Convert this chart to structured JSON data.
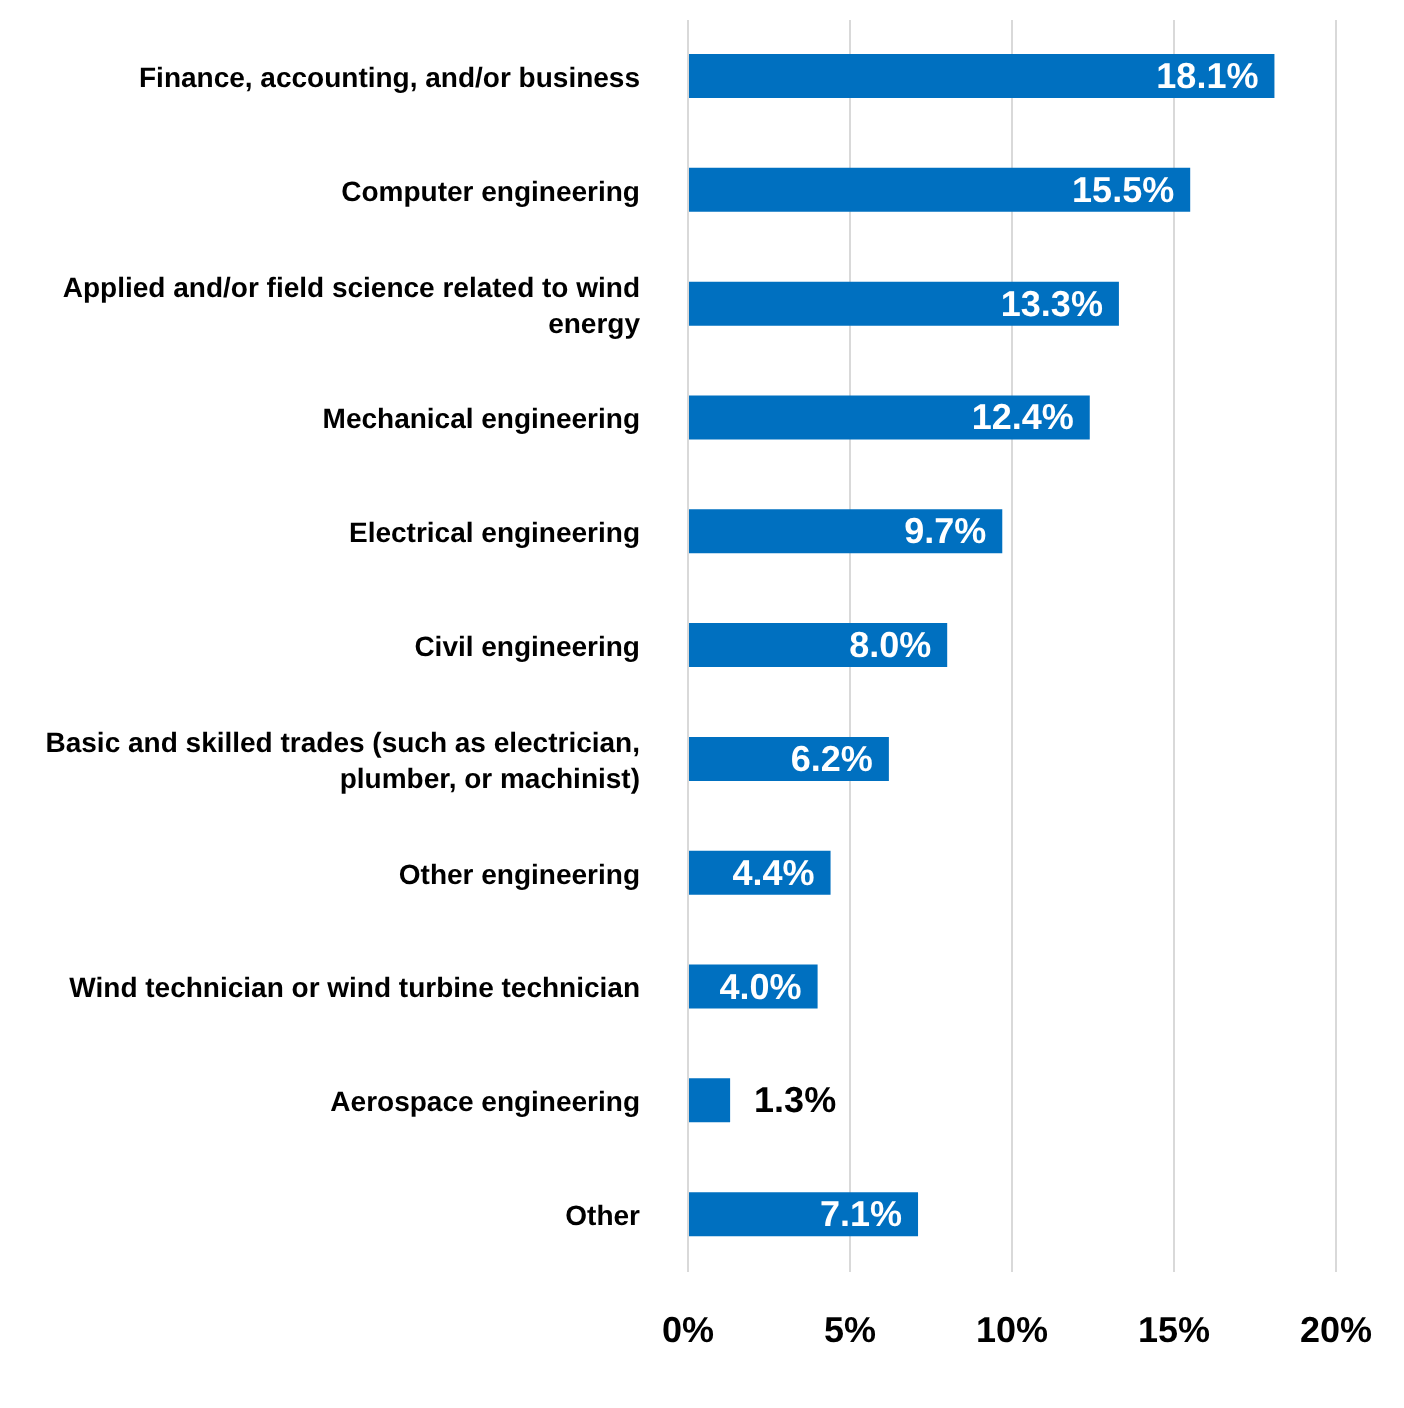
{
  "chart_data": {
    "type": "bar",
    "orientation": "horizontal",
    "categories": [
      "Finance, accounting, and/or business",
      "Computer engineering",
      "Applied and/or field science related to wind energy",
      "Mechanical engineering",
      "Electrical engineering",
      "Civil engineering",
      "Basic and skilled trades (such as electrician, plumber, or machinist)",
      "Other engineering",
      "Wind technician or wind turbine technician",
      "Aerospace engineering",
      "Other"
    ],
    "values": [
      18.1,
      15.5,
      13.3,
      12.4,
      9.7,
      8.0,
      6.2,
      4.4,
      4.0,
      1.3,
      7.1
    ],
    "value_labels": [
      "18.1%",
      "15.5%",
      "13.3%",
      "12.4%",
      "9.7%",
      "8.0%",
      "6.2%",
      "4.4%",
      "4.0%",
      "1.3%",
      "7.1%"
    ],
    "color": "#0070c0",
    "xlim": [
      0,
      20
    ],
    "xticks": [
      {
        "value": 0,
        "label": "0%"
      },
      {
        "value": 5,
        "label": "5%"
      },
      {
        "value": 10,
        "label": "10%"
      },
      {
        "value": 15,
        "label": "15%"
      },
      {
        "value": 20,
        "label": "20%"
      }
    ],
    "grid": "x"
  }
}
